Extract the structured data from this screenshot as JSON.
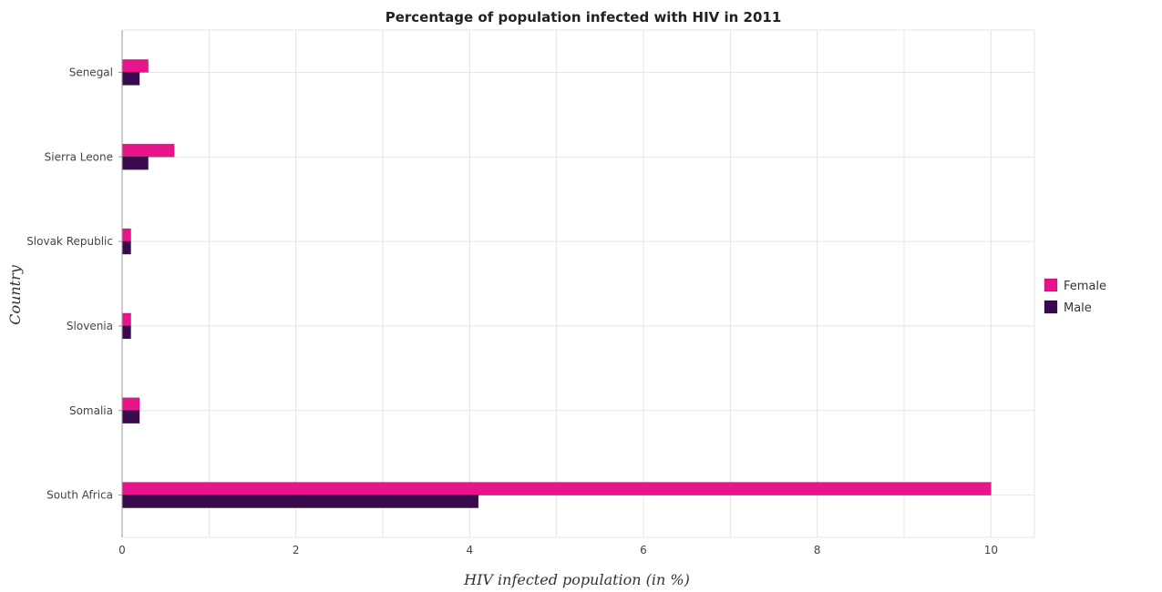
{
  "chart_data": {
    "type": "bar",
    "orientation": "horizontal",
    "title": "Percentage of population infected with HIV in 2011",
    "xlabel": "HIV infected population (in %)",
    "ylabel": "Country",
    "categories": [
      "Senegal",
      "Sierra Leone",
      "Slovak Republic",
      "Slovenia",
      "Somalia",
      "South Africa"
    ],
    "series": [
      {
        "name": "Female",
        "color": "#e8158a",
        "values": [
          0.3,
          0.6,
          0.1,
          0.1,
          0.2,
          10.0
        ]
      },
      {
        "name": "Male",
        "color": "#3a0a4e",
        "values": [
          0.2,
          0.3,
          0.1,
          0.1,
          0.2,
          4.1
        ]
      }
    ],
    "xlim": [
      0,
      10.5
    ],
    "xticks": [
      "0",
      "2",
      "4",
      "6",
      "8",
      "10"
    ],
    "grid": true,
    "legend_position": "right"
  }
}
